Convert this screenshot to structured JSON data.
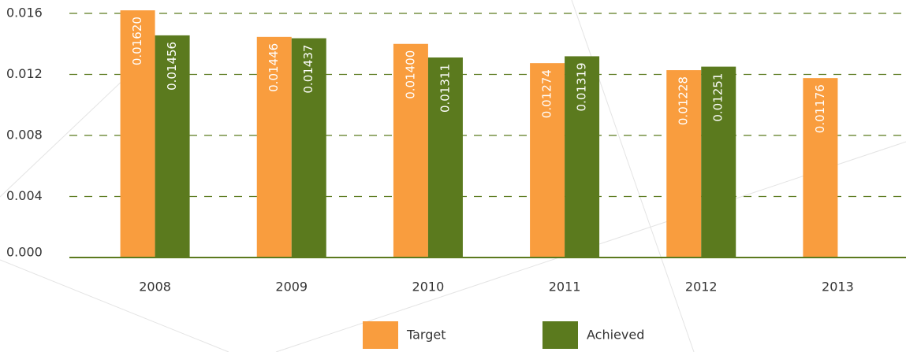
{
  "chart_data": {
    "type": "bar",
    "categories": [
      "2008",
      "2009",
      "2010",
      "2011",
      "2012",
      "2013"
    ],
    "series": [
      {
        "name": "Target",
        "color": "#f99d3e",
        "values": [
          0.0162,
          0.01446,
          0.014,
          0.01274,
          0.01228,
          0.01176
        ],
        "value_labels": [
          "0.01620",
          "0.01446",
          "0.01400",
          "0.01274",
          "0.01228",
          "0.01176"
        ]
      },
      {
        "name": "Achieved",
        "color": "#5b7a1e",
        "values": [
          0.01456,
          0.01437,
          0.01311,
          0.01319,
          0.01251,
          null
        ],
        "value_labels": [
          "0.01456",
          "0.01437",
          "0.01311",
          "0.01319",
          "0.01251",
          null
        ]
      }
    ],
    "ylim": [
      0,
      0.016
    ],
    "yticks": [
      {
        "value": 0,
        "label": "0.000"
      },
      {
        "value": 0.004,
        "label": "0.004"
      },
      {
        "value": 0.008,
        "label": "0.008"
      },
      {
        "value": 0.012,
        "label": "0.012"
      },
      {
        "value": 0.016,
        "label": "0.016"
      }
    ],
    "grid": true,
    "legend": "bottom"
  }
}
